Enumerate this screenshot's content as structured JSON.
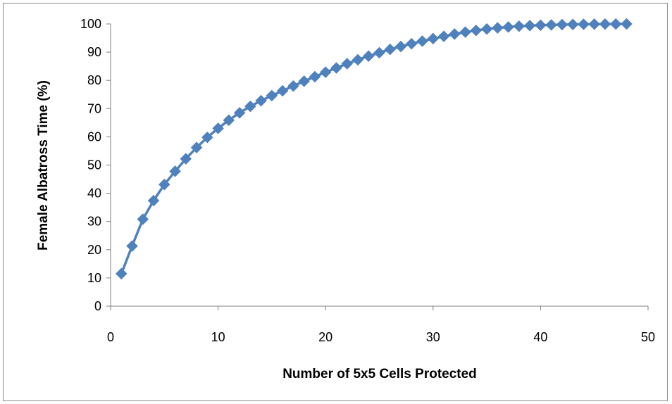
{
  "colors": {
    "series": "#4F81BD",
    "axis": "#7f7f7f",
    "text": "#000000"
  },
  "chart_data": {
    "type": "line",
    "title": "",
    "xlabel": "Number of 5x5 Cells Protected",
    "ylabel": "Female  Albatross  Time (%)",
    "xlim": [
      0,
      50
    ],
    "ylim": [
      0,
      100
    ],
    "xticks": [
      "0",
      "10",
      "20",
      "30",
      "40",
      "50"
    ],
    "yticks": [
      "0",
      "10",
      "20",
      "30",
      "40",
      "50",
      "60",
      "70",
      "80",
      "90",
      "100"
    ],
    "grid": false,
    "legend": "none",
    "marker": "diamond",
    "series": [
      {
        "x": [
          1,
          2,
          3,
          4,
          5,
          6,
          7,
          8,
          9,
          10,
          11,
          12,
          13,
          14,
          15,
          16,
          17,
          18,
          19,
          20,
          21,
          22,
          23,
          24,
          25,
          26,
          27,
          28,
          29,
          30,
          31,
          32,
          33,
          34,
          35,
          36,
          37,
          38,
          39,
          40,
          41,
          42,
          43,
          44,
          45,
          46,
          47,
          48
        ],
        "values": [
          11.5,
          21.3,
          30.8,
          37.4,
          43.1,
          47.8,
          52.2,
          56.2,
          59.8,
          63.0,
          65.9,
          68.5,
          70.8,
          72.8,
          74.6,
          76.3,
          78.0,
          79.7,
          81.3,
          82.9,
          84.4,
          85.9,
          87.3,
          88.6,
          89.8,
          91.0,
          92.0,
          93.0,
          93.9,
          94.8,
          95.6,
          96.4,
          97.1,
          97.7,
          98.2,
          98.6,
          98.9,
          99.2,
          99.4,
          99.55,
          99.65,
          99.75,
          99.82,
          99.88,
          99.92,
          99.95,
          99.97,
          100.0
        ]
      }
    ]
  }
}
